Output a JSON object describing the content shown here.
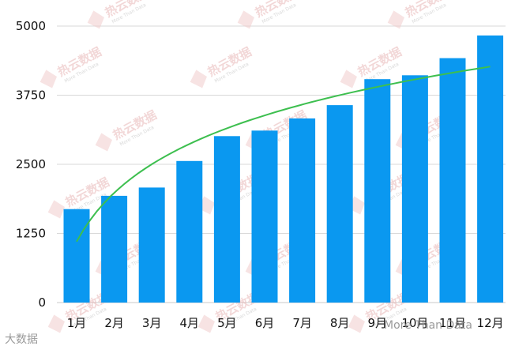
{
  "chart_data": {
    "type": "bar",
    "categories": [
      "1月",
      "2月",
      "3月",
      "4月",
      "5月",
      "6月",
      "7月",
      "8月",
      "9月",
      "10月",
      "11月",
      "12月"
    ],
    "values": [
      1690,
      1930,
      2080,
      2560,
      3010,
      3110,
      3330,
      3570,
      4040,
      4110,
      4420,
      4830
    ],
    "trendline": {
      "type": "logarithmic",
      "color": "#3dbf4f"
    },
    "yticks": [
      0,
      1250,
      2500,
      3750,
      5000
    ],
    "ylim": [
      0,
      5000
    ],
    "grid": true,
    "bar_color": "#0a98f0",
    "title": "",
    "xlabel": "",
    "ylabel": ""
  },
  "watermark": {
    "text": "热云数据",
    "subtext": "More Than Data"
  },
  "footer": {
    "left": "大数据",
    "right": "More Than Data"
  }
}
